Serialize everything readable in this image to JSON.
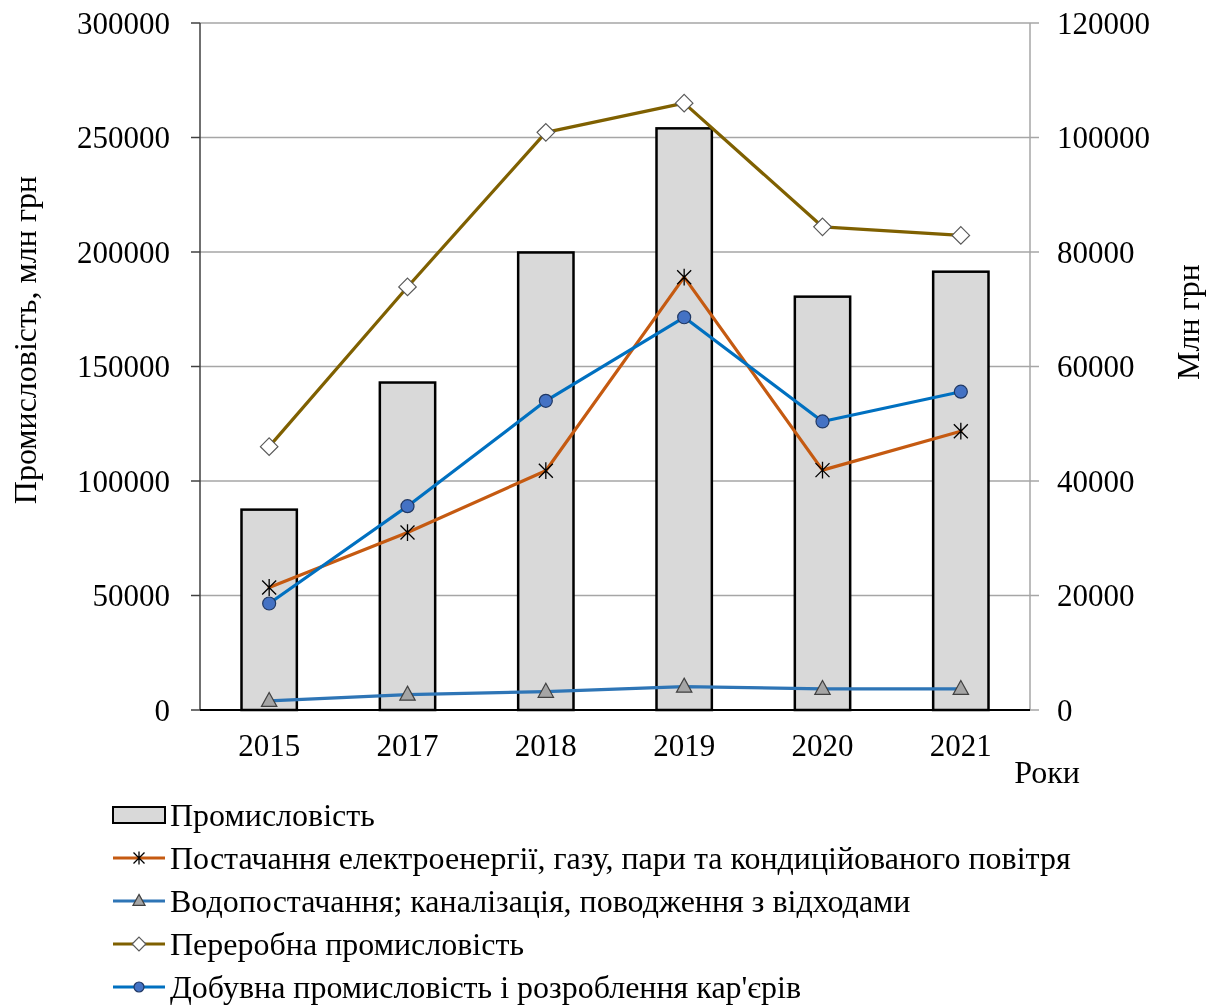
{
  "chart_data": {
    "type": "bar",
    "categories": [
      "2015",
      "2017",
      "2018",
      "2019",
      "2020",
      "2021"
    ],
    "xlabel": "Роки",
    "ylabel": "Промисловість, млн грн",
    "y2label": "Млн грн",
    "ylim": [
      0,
      300000
    ],
    "yticks": [
      0,
      50000,
      100000,
      150000,
      200000,
      250000,
      300000
    ],
    "y2lim": [
      0,
      120000
    ],
    "y2ticks": [
      0,
      20000,
      40000,
      60000,
      80000,
      100000,
      120000
    ],
    "grid": "y",
    "legend": "bottom",
    "series": [
      {
        "name": "Промисловість",
        "color": "#d9d9d9",
        "values": [
          87500,
          143000,
          199800,
          254000,
          180500,
          191400
        ]
      },
      {
        "name": "Постачання електроенергії, газу, пари та кондиційованого повітря",
        "type": "line",
        "axis": "y2",
        "color": "#c55a11",
        "marker": "cross",
        "values": [
          21400,
          31000,
          41800,
          75600,
          41900,
          48700
        ]
      },
      {
        "name": "Водопостачання; каналізація, поводження з відходами",
        "type": "line",
        "axis": "y2",
        "color": "#2e75b6",
        "marker": "triangle",
        "values": [
          1600,
          2700,
          3200,
          4100,
          3700,
          3700
        ]
      },
      {
        "name": "Переробна промисловість",
        "type": "line",
        "axis": "y2",
        "color": "#7f6000",
        "marker": "diamond",
        "values": [
          46000,
          73900,
          100900,
          106000,
          84400,
          82900
        ]
      },
      {
        "name": "Добувна промисловість і розроблення кар'єрів",
        "type": "line",
        "axis": "y2",
        "color": "#0070c0",
        "marker": "circle",
        "values": [
          18600,
          35600,
          54000,
          68600,
          50400,
          55600
        ]
      }
    ]
  }
}
